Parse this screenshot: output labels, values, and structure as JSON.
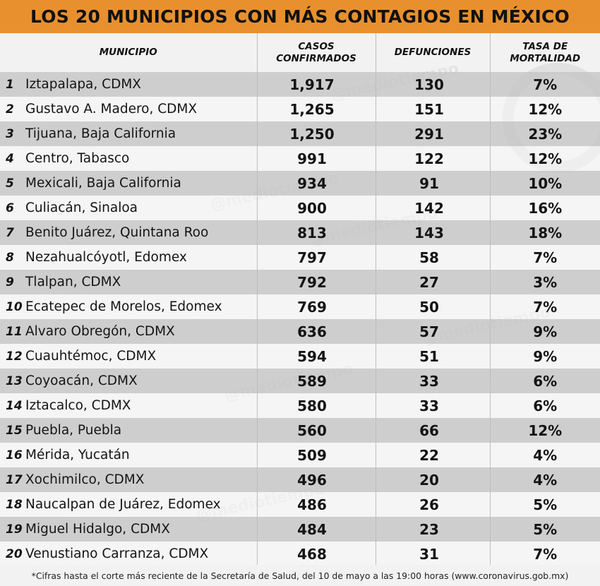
{
  "title": "LOS 20 MUNICIPIOS CON MÁS CONTAGIOS EN MÉXICO",
  "watermark_text": "@mediotiempo",
  "colors": {
    "title_bar": "#e8902e",
    "row_dark": "#c4c4c4",
    "row_light": "#f6f6f6",
    "background": "#f2f2f2"
  },
  "footnote": "*Cifras hasta el corte más reciente de la Secretaría de Salud, del 10 de mayo a las 19:00 horas (www.coronavirus.gob.mx)",
  "chart_data": {
    "type": "table",
    "title": "LOS 20 MUNICIPIOS CON MÁS CONTAGIOS EN MÉXICO",
    "columns": [
      "MUNICIPIO",
      "CASOS CONFIRMADOS",
      "DEFUNCIONES",
      "TASA DE MORTALIDAD"
    ],
    "rows": [
      {
        "rank": "1",
        "municipio": "Iztapalapa, CDMX",
        "casos": "1,917",
        "defunciones": "130",
        "tasa": "7%"
      },
      {
        "rank": "2",
        "municipio": "Gustavo A. Madero, CDMX",
        "casos": "1,265",
        "defunciones": "151",
        "tasa": "12%"
      },
      {
        "rank": "3",
        "municipio": "Tijuana, Baja California",
        "casos": "1,250",
        "defunciones": "291",
        "tasa": "23%"
      },
      {
        "rank": "4",
        "municipio": "Centro, Tabasco",
        "casos": "991",
        "defunciones": "122",
        "tasa": "12%"
      },
      {
        "rank": "5",
        "municipio": "Mexicali, Baja California",
        "casos": "934",
        "defunciones": "91",
        "tasa": "10%"
      },
      {
        "rank": "6",
        "municipio": "Culiacán, Sinaloa",
        "casos": "900",
        "defunciones": "142",
        "tasa": "16%"
      },
      {
        "rank": "7",
        "municipio": "Benito Juárez, Quintana Roo",
        "casos": "813",
        "defunciones": "143",
        "tasa": "18%"
      },
      {
        "rank": "8",
        "municipio": "Nezahualcóyotl, Edomex",
        "casos": "797",
        "defunciones": "58",
        "tasa": "7%"
      },
      {
        "rank": "9",
        "municipio": "Tlalpan, CDMX",
        "casos": "792",
        "defunciones": "27",
        "tasa": "3%"
      },
      {
        "rank": "10",
        "municipio": "Ecatepec de Morelos, Edomex",
        "casos": "769",
        "defunciones": "50",
        "tasa": "7%"
      },
      {
        "rank": "11",
        "municipio": "Alvaro Obregón, CDMX",
        "casos": "636",
        "defunciones": "57",
        "tasa": "9%"
      },
      {
        "rank": "12",
        "municipio": "Cuauhtémoc, CDMX",
        "casos": "594",
        "defunciones": "51",
        "tasa": "9%"
      },
      {
        "rank": "13",
        "municipio": "Coyoacán, CDMX",
        "casos": "589",
        "defunciones": "33",
        "tasa": "6%"
      },
      {
        "rank": "14",
        "municipio": "Iztacalco, CDMX",
        "casos": "580",
        "defunciones": "33",
        "tasa": "6%"
      },
      {
        "rank": "15",
        "municipio": "Puebla, Puebla",
        "casos": "560",
        "defunciones": "66",
        "tasa": "12%"
      },
      {
        "rank": "16",
        "municipio": "Mérida, Yucatán",
        "casos": "509",
        "defunciones": "22",
        "tasa": "4%"
      },
      {
        "rank": "17",
        "municipio": "Xochimilco, CDMX",
        "casos": "496",
        "defunciones": "20",
        "tasa": "4%"
      },
      {
        "rank": "18",
        "municipio": "Naucalpan de Juárez, Edomex",
        "casos": "486",
        "defunciones": "26",
        "tasa": "5%"
      },
      {
        "rank": "19",
        "municipio": "Miguel Hidalgo, CDMX",
        "casos": "484",
        "defunciones": "23",
        "tasa": "5%"
      },
      {
        "rank": "20",
        "municipio": "Venustiano Carranza, CDMX",
        "casos": "468",
        "defunciones": "31",
        "tasa": "7%"
      }
    ]
  }
}
